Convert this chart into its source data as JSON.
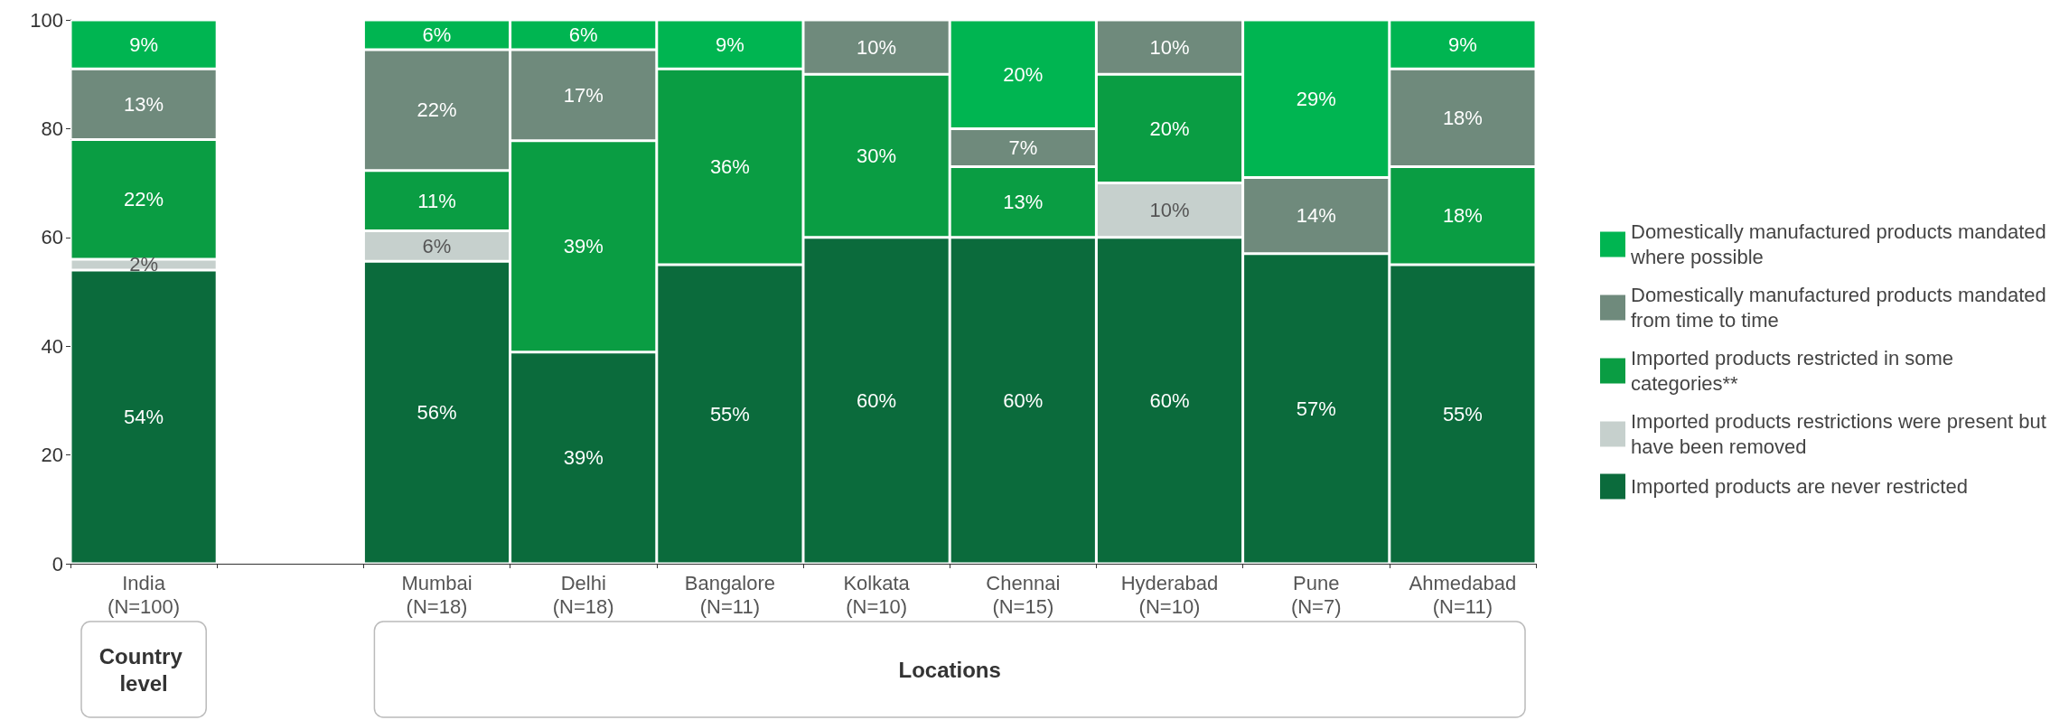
{
  "chart_data": {
    "type": "bar",
    "stacked": true,
    "categories": [
      "India\n(N=100)",
      null,
      "Mumbai\n(N=18)",
      "Delhi\n(N=18)",
      "Bangalore\n(N=11)",
      "Kolkata\n(N=10)",
      "Chennai\n(N=15)",
      "Hyderabad\n(N=10)",
      "Pune\n(N=7)",
      "Ahmedabad\n(N=11)"
    ],
    "series": [
      {
        "name": "Imported products are never restricted",
        "color": "#0b6b3c",
        "values": [
          54,
          null,
          55.6,
          38.9,
          55,
          60,
          60,
          60,
          57,
          55
        ],
        "value_labels": [
          "54%",
          null,
          "56%",
          "39%",
          "55%",
          "60%",
          "60%",
          "60%",
          "57%",
          "55%"
        ]
      },
      {
        "name": "Imported products restrictions were present but have been removed",
        "color": "#c6d0cd",
        "values": [
          2,
          null,
          5.6,
          null,
          null,
          null,
          null,
          10,
          null,
          null
        ],
        "value_labels": [
          "2%",
          null,
          "6%",
          null,
          null,
          null,
          null,
          "10%",
          null,
          null
        ]
      },
      {
        "name": "Imported products restricted in some categories**",
        "color": "#0a9d43",
        "values": [
          22,
          null,
          11.1,
          38.9,
          36,
          30,
          13,
          20,
          null,
          18
        ],
        "value_labels": [
          "22%",
          null,
          "11%",
          "39%",
          "36%",
          "30%",
          "13%",
          "20%",
          null,
          "18%"
        ]
      },
      {
        "name": "Domestically manufactured products mandated from time to time",
        "color": "#6f8a7c",
        "values": [
          13,
          null,
          22.2,
          16.7,
          null,
          10,
          7,
          10,
          14,
          18
        ],
        "value_labels": [
          "13%",
          null,
          "22%",
          "17%",
          null,
          "10%",
          "7%",
          "10%",
          "14%",
          "18%"
        ]
      },
      {
        "name": "Domestically manufactured products mandated where possible",
        "color": "#00b551",
        "values": [
          9,
          null,
          5.5,
          5.5,
          9,
          null,
          20,
          null,
          29,
          9
        ],
        "value_labels": [
          "9%",
          null,
          "6%",
          "6%",
          "9%",
          null,
          "20%",
          null,
          "29%",
          "9%"
        ]
      }
    ],
    "ylim": [
      0,
      100
    ],
    "yticks": [
      0,
      20,
      40,
      60,
      80,
      100
    ],
    "grid": false,
    "legend": "right",
    "annotations": [
      "Country level",
      "Locations"
    ]
  }
}
